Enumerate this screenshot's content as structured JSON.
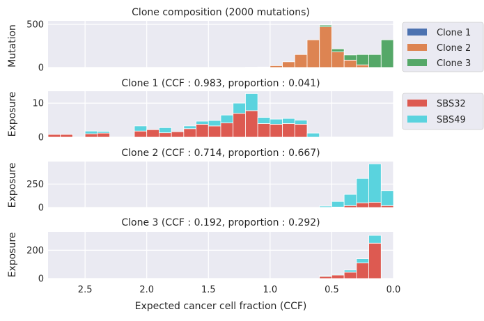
{
  "figure": {
    "xlabel": "Expected cancer cell fraction (CCF)",
    "xticks": [
      "2.5",
      "2.0",
      "1.5",
      "1.0",
      "0.5",
      "0.0"
    ],
    "xtick_values": [
      2.5,
      2.0,
      1.5,
      1.0,
      0.5,
      0.0
    ],
    "x_range": [
      2.8,
      0.0
    ],
    "bin_width": 0.1,
    "colors": {
      "Clone 1": "#4c72b0",
      "Clone 2": "#dd8452",
      "Clone 3": "#55a868",
      "SBS32": "#dd5a51",
      "SBS49": "#5ad3de",
      "plot_bg": "#eaeaf2",
      "grid": "#ffffff"
    }
  },
  "legends": {
    "clones": [
      "Clone 1",
      "Clone 2",
      "Clone 3"
    ],
    "signatures": [
      "SBS32",
      "SBS49"
    ]
  },
  "chart_data": [
    {
      "type": "bar",
      "title": "Clone composition (2000 mutations)",
      "ylabel": "Mutation",
      "yticks": [
        0,
        500
      ],
      "ylim": [
        0,
        540
      ],
      "bins": [
        2.75,
        2.65,
        2.55,
        2.45,
        2.35,
        2.25,
        2.15,
        2.05,
        1.95,
        1.85,
        1.75,
        1.65,
        1.55,
        1.45,
        1.35,
        1.25,
        1.15,
        1.05,
        0.95,
        0.85,
        0.75,
        0.65,
        0.55,
        0.45,
        0.35,
        0.25,
        0.15,
        0.05
      ],
      "series": [
        {
          "name": "Clone 1",
          "values": [
            1,
            1,
            0,
            1,
            1,
            0,
            1,
            1,
            1,
            1,
            1,
            1,
            1,
            1,
            1,
            1,
            1,
            1,
            1,
            1,
            1,
            1,
            1,
            1,
            1,
            1,
            1,
            1
          ]
        },
        {
          "name": "Clone 2",
          "values": [
            0,
            0,
            0,
            0,
            0,
            0,
            0,
            0,
            0,
            0,
            0,
            0,
            0,
            0,
            0,
            0,
            3,
            5,
            20,
            65,
            150,
            320,
            470,
            180,
            85,
            30,
            0,
            0
          ]
        },
        {
          "name": "Clone 3",
          "values": [
            0,
            0,
            0,
            0,
            0,
            0,
            0,
            0,
            0,
            0,
            0,
            0,
            0,
            0,
            0,
            0,
            0,
            0,
            0,
            0,
            0,
            0,
            20,
            35,
            60,
            120,
            150,
            320
          ]
        }
      ]
    },
    {
      "type": "bar",
      "title": "Clone 1 (CCF : 0.983, proportion : 0.041)",
      "ylabel": "Exposure",
      "yticks": [
        0,
        10
      ],
      "ylim": [
        0,
        13.5
      ],
      "bins": [
        2.75,
        2.65,
        2.55,
        2.45,
        2.35,
        2.25,
        2.15,
        2.05,
        1.95,
        1.85,
        1.75,
        1.65,
        1.55,
        1.45,
        1.35,
        1.25,
        1.15,
        1.05,
        0.95,
        0.85,
        0.75,
        0.65,
        0.55,
        0.45,
        0.35,
        0.25,
        0.15,
        0.05
      ],
      "series": [
        {
          "name": "SBS32",
          "values": [
            0.8,
            0.8,
            0,
            1.0,
            1.2,
            0,
            0,
            1.8,
            2.2,
            1.3,
            1.6,
            2.5,
            3.8,
            3.3,
            4.2,
            7.0,
            7.8,
            4.0,
            3.8,
            4.0,
            3.8,
            0,
            0,
            0,
            0,
            0,
            0,
            0
          ]
        },
        {
          "name": "SBS49",
          "values": [
            0,
            0,
            0,
            0.8,
            0.5,
            0,
            0,
            1.5,
            0,
            1.5,
            0,
            0.8,
            0.9,
            1.6,
            2.3,
            3.0,
            5.0,
            1.8,
            1.5,
            1.5,
            1.2,
            1.2,
            0,
            0,
            0,
            0,
            0,
            0
          ]
        }
      ]
    },
    {
      "type": "bar",
      "title": "Clone 2 (CCF : 0.714, proportion : 0.667)",
      "ylabel": "Exposure",
      "yticks": [
        0,
        250
      ],
      "ylim": [
        0,
        490
      ],
      "bins": [
        2.75,
        2.65,
        2.55,
        2.45,
        2.35,
        2.25,
        2.15,
        2.05,
        1.95,
        1.85,
        1.75,
        1.65,
        1.55,
        1.45,
        1.35,
        1.25,
        1.15,
        1.05,
        0.95,
        0.85,
        0.75,
        0.65,
        0.55,
        0.45,
        0.35,
        0.25,
        0.15,
        0.05
      ],
      "series": [
        {
          "name": "SBS32",
          "values": [
            0,
            0,
            0,
            0,
            0,
            0,
            0,
            0,
            0,
            0,
            0,
            0,
            0,
            0,
            0,
            0,
            0,
            0,
            0,
            0,
            0,
            0,
            2,
            5,
            20,
            50,
            55,
            20
          ]
        },
        {
          "name": "SBS49",
          "values": [
            0,
            0,
            0,
            0,
            0,
            0,
            0,
            0,
            0,
            0,
            0,
            0,
            0,
            0,
            0,
            0,
            0,
            0,
            0,
            0,
            0,
            0,
            13,
            60,
            120,
            260,
            410,
            160
          ]
        }
      ]
    },
    {
      "type": "bar",
      "title": "Clone 3 (CCF : 0.192, proportion : 0.292)",
      "ylabel": "Exposure",
      "yticks": [
        0,
        200
      ],
      "ylim": [
        0,
        330
      ],
      "bins": [
        2.75,
        2.65,
        2.55,
        2.45,
        2.35,
        2.25,
        2.15,
        2.05,
        1.95,
        1.85,
        1.75,
        1.65,
        1.55,
        1.45,
        1.35,
        1.25,
        1.15,
        1.05,
        0.95,
        0.85,
        0.75,
        0.65,
        0.55,
        0.45,
        0.35,
        0.25,
        0.15,
        0.05
      ],
      "series": [
        {
          "name": "SBS32",
          "values": [
            0,
            0,
            0,
            0,
            0,
            0,
            0,
            0,
            0,
            0,
            0,
            0,
            0,
            0,
            0,
            0,
            0,
            0,
            0,
            0,
            0,
            0,
            15,
            25,
            45,
            110,
            250,
            0
          ]
        },
        {
          "name": "SBS49",
          "values": [
            0,
            0,
            0,
            0,
            0,
            0,
            0,
            0,
            0,
            0,
            0,
            0,
            0,
            0,
            0,
            0,
            0,
            0,
            0,
            0,
            0,
            0,
            5,
            5,
            15,
            30,
            55,
            0
          ]
        }
      ]
    }
  ]
}
